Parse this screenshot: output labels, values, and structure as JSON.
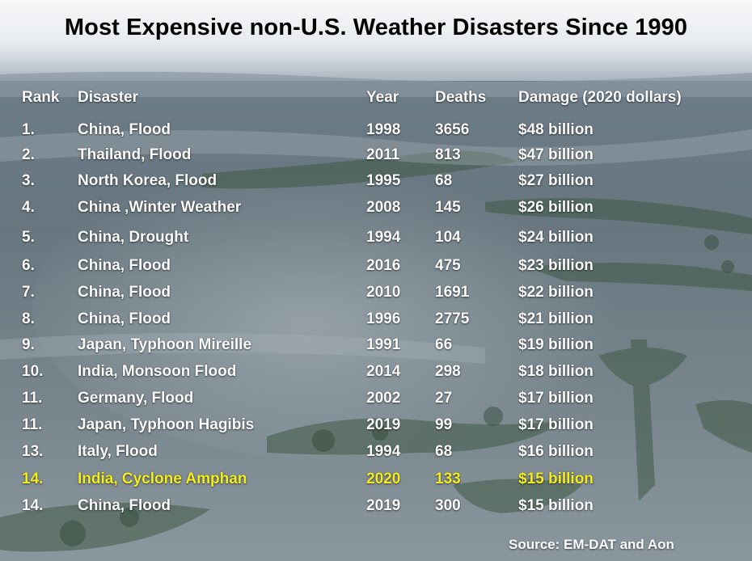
{
  "title": "Most Expensive non-U.S. Weather Disasters Since 1990",
  "headers": {
    "rank": "Rank",
    "disaster": "Disaster",
    "year": "Year",
    "deaths": "Deaths",
    "damage": "Damage (2020 dollars)"
  },
  "rows": [
    {
      "rank": "1.",
      "disaster": "China, Flood",
      "year": "1998",
      "deaths": "3656",
      "damage": "$48 billion"
    },
    {
      "rank": "2.",
      "disaster": "Thailand, Flood",
      "year": "2011",
      "deaths": "813",
      "damage": "$47 billion"
    },
    {
      "rank": "3.",
      "disaster": "North Korea, Flood",
      "year": "1995",
      "deaths": "68",
      "damage": "$27 billion"
    },
    {
      "rank": "4.",
      "disaster": "China ,Winter Weather",
      "year": "2008",
      "deaths": "145",
      "damage": "$26 billion"
    },
    {
      "rank": "5.",
      "disaster": "China, Drought",
      "year": "1994",
      "deaths": "104",
      "damage": "$24 billion"
    },
    {
      "rank": "6.",
      "disaster": "China, Flood",
      "year": "2016",
      "deaths": "475",
      "damage": "$23 billion"
    },
    {
      "rank": "7.",
      "disaster": "China, Flood",
      "year": "2010",
      "deaths": "1691",
      "damage": "$22 billion"
    },
    {
      "rank": "8.",
      "disaster": "China, Flood",
      "year": "1996",
      "deaths": "2775",
      "damage": "$21 billion"
    },
    {
      "rank": "9.",
      "disaster": "Japan, Typhoon Mireille",
      "year": "1991",
      "deaths": "66",
      "damage": "$19 billion"
    },
    {
      "rank": "10.",
      "disaster": "India, Monsoon Flood",
      "year": "2014",
      "deaths": "298",
      "damage": "$18 billion"
    },
    {
      "rank": "11.",
      "disaster": "Germany, Flood",
      "year": "2002",
      "deaths": "27",
      "damage": "$17 billion"
    },
    {
      "rank": "11.",
      "disaster": "Japan, Typhoon Hagibis",
      "year": "2019",
      "deaths": "99",
      "damage": "$17 billion"
    },
    {
      "rank": "13.",
      "disaster": "Italy, Flood",
      "year": "1994",
      "deaths": "68",
      "damage": "$16 billion"
    },
    {
      "rank": "14.",
      "disaster": "India, Cyclone Amphan",
      "year": "2020",
      "deaths": "133",
      "damage": "$15 billion",
      "highlighted": true
    },
    {
      "rank": "14.",
      "disaster": "China, Flood",
      "year": "2019",
      "deaths": "300",
      "damage": "$15 billion"
    }
  ],
  "source": "Source: EM-DAT and Aon",
  "colors": {
    "text": "#ffffff",
    "highlight": "#f5ee1e",
    "title": "#000000"
  },
  "background": "aerial-flood-photo"
}
